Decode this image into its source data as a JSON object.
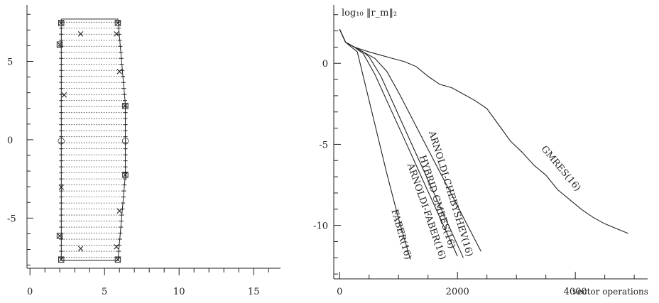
{
  "chart_data": [
    {
      "type": "scatter",
      "title": "",
      "xlabel": "",
      "ylabel": "",
      "xlim": [
        -0.2,
        16.8
      ],
      "ylim": [
        -8.2,
        8.6
      ],
      "x_ticks": [
        0,
        5,
        10,
        15
      ],
      "y_ticks": [
        5,
        0,
        -5
      ],
      "x_tick_labels": [
        "0",
        "5",
        "10",
        "15"
      ],
      "y_tick_labels": [
        "5",
        "0",
        "-5"
      ],
      "boundary": [
        [
          2.1,
          7.7
        ],
        [
          5.9,
          7.7
        ],
        [
          6.4,
          2.2
        ],
        [
          6.4,
          -2.2
        ],
        [
          5.9,
          -7.7
        ],
        [
          2.1,
          -7.7
        ],
        [
          2.1,
          7.7
        ]
      ],
      "horizontal_segments": {
        "x_left": 2.1,
        "y_min": -7.5,
        "y_max": 7.5,
        "count": 40
      },
      "vertical_segments_x": [
        2.1,
        5.9,
        6.4
      ],
      "markers": [
        {
          "x": 2.1,
          "y": 7.5,
          "symbol": "⊠"
        },
        {
          "x": 5.9,
          "y": 7.5,
          "symbol": "⊠"
        },
        {
          "x": 3.4,
          "y": 6.8,
          "symbol": "×"
        },
        {
          "x": 5.8,
          "y": 6.8,
          "symbol": "×"
        },
        {
          "x": 2.0,
          "y": 6.1,
          "symbol": "⊠"
        },
        {
          "x": 6.0,
          "y": 4.4,
          "symbol": "×"
        },
        {
          "x": 2.3,
          "y": 2.9,
          "symbol": "×"
        },
        {
          "x": 6.4,
          "y": 2.2,
          "symbol": "⊠"
        },
        {
          "x": 2.1,
          "y": 0.0,
          "symbol": "○"
        },
        {
          "x": 6.4,
          "y": 0.0,
          "symbol": "○"
        },
        {
          "x": 6.4,
          "y": -2.2,
          "symbol": "⊠"
        },
        {
          "x": 2.1,
          "y": -3.0,
          "symbol": "×"
        },
        {
          "x": 6.0,
          "y": -4.5,
          "symbol": "×"
        },
        {
          "x": 2.0,
          "y": -6.1,
          "symbol": "⊠"
        },
        {
          "x": 3.4,
          "y": -6.9,
          "symbol": "×"
        },
        {
          "x": 5.8,
          "y": -6.8,
          "symbol": "×"
        },
        {
          "x": 2.1,
          "y": -7.6,
          "symbol": "⊠"
        },
        {
          "x": 5.9,
          "y": -7.6,
          "symbol": "⊠"
        }
      ]
    },
    {
      "type": "line",
      "title": "",
      "ylabel": "log₁₀ ‖r_m‖₂",
      "xlabel": "vector operations",
      "xlim": [
        -100,
        5300
      ],
      "ylim": [
        -13.3,
        3.6
      ],
      "x_ticks": [
        0,
        2000,
        4000
      ],
      "y_ticks": [
        0,
        -5,
        -10
      ],
      "x_tick_labels": [
        "0",
        "2000",
        "4000"
      ],
      "y_tick_labels": [
        "0",
        "-5",
        "-10"
      ],
      "series": [
        {
          "name": "GMRES(16)",
          "x": [
            0,
            100,
            250,
            500,
            700,
            900,
            1100,
            1300,
            1500,
            1700,
            1900,
            2100,
            2300,
            2500,
            2700,
            2900,
            3100,
            3300,
            3500,
            3700,
            3900,
            4100,
            4300,
            4500,
            4700,
            4900
          ],
          "y": [
            2.1,
            1.3,
            1.0,
            0.7,
            0.5,
            0.3,
            0.1,
            -0.2,
            -0.8,
            -1.3,
            -1.5,
            -1.9,
            -2.3,
            -2.8,
            -3.8,
            -4.8,
            -5.5,
            -6.3,
            -6.9,
            -7.8,
            -8.4,
            -9.0,
            -9.5,
            -9.9,
            -10.2,
            -10.5
          ]
        },
        {
          "name": "ARNOLDI-CHEBYSHEV(16)",
          "x": [
            0,
            100,
            250,
            400,
            500,
            600,
            800,
            1000,
            1200,
            1400,
            1600,
            1800,
            2000,
            2200,
            2400
          ],
          "y": [
            2.1,
            1.3,
            1.0,
            0.7,
            0.5,
            0.3,
            -0.5,
            -1.8,
            -3.2,
            -4.6,
            -6.0,
            -7.4,
            -8.8,
            -10.2,
            -11.6
          ]
        },
        {
          "name": "HYBRID GMRES(16)",
          "x": [
            0,
            100,
            250,
            400,
            500,
            700,
            900,
            1100,
            1300,
            1500,
            1700,
            1900,
            2100
          ],
          "y": [
            2.1,
            1.3,
            1.0,
            0.7,
            0.4,
            -0.8,
            -2.4,
            -4.0,
            -5.6,
            -7.2,
            -8.8,
            -10.4,
            -12.0
          ]
        },
        {
          "name": "ARNOLDI-FABER(16)",
          "x": [
            0,
            100,
            250,
            400,
            600,
            800,
            1000,
            1200,
            1400,
            1600,
            1800,
            2000
          ],
          "y": [
            2.1,
            1.3,
            1.0,
            0.6,
            -0.7,
            -2.3,
            -3.9,
            -5.5,
            -7.1,
            -8.7,
            -10.3,
            -11.9
          ]
        },
        {
          "name": "FABER(16)",
          "x": [
            0,
            100,
            200,
            300,
            400,
            600,
            800,
            1000,
            1200
          ],
          "y": [
            2.1,
            1.3,
            1.0,
            0.7,
            -0.8,
            -3.8,
            -6.8,
            -9.6,
            -12.1
          ]
        }
      ]
    }
  ]
}
